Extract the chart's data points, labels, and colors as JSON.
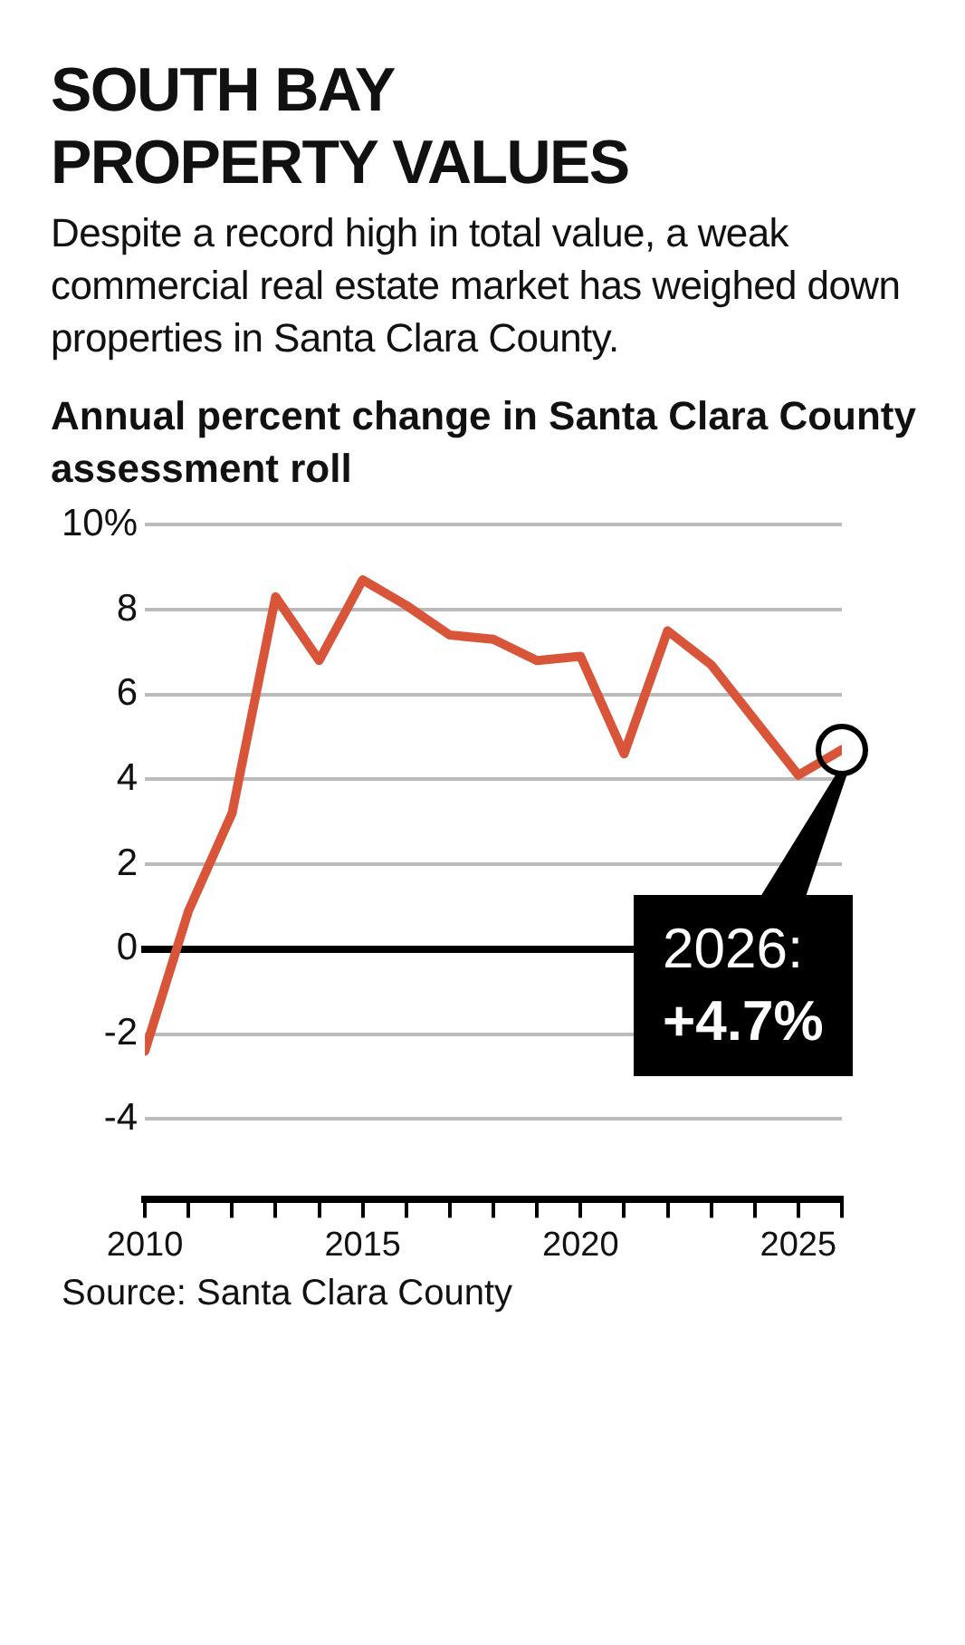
{
  "chart_data": {
    "type": "line",
    "title": "SOUTH BAY PROPERTY VALUES",
    "subtitle": "Despite a record high in total value, a weak commercial real estate market has weighed down properties in Santa Clara County.",
    "ylabel": "Annual percent change in Santa Clara County assessment roll",
    "x": [
      2010,
      2011,
      2012,
      2013,
      2014,
      2015,
      2016,
      2017,
      2018,
      2019,
      2020,
      2021,
      2022,
      2023,
      2024,
      2025,
      2026
    ],
    "series": [
      {
        "color": "#d9553a",
        "values": [
          -2.4,
          0.9,
          3.2,
          8.3,
          6.8,
          8.7,
          8.1,
          7.4,
          7.3,
          6.8,
          6.9,
          4.6,
          7.5,
          6.7,
          5.4,
          4.1,
          4.7
        ]
      }
    ],
    "xlim": [
      2010,
      2026
    ],
    "xticks": [
      {
        "value": 2010,
        "label": "2010"
      },
      {
        "value": 2011,
        "label": null
      },
      {
        "value": 2012,
        "label": null
      },
      {
        "value": 2013,
        "label": null
      },
      {
        "value": 2014,
        "label": null
      },
      {
        "value": 2015,
        "label": "2015"
      },
      {
        "value": 2016,
        "label": null
      },
      {
        "value": 2017,
        "label": null
      },
      {
        "value": 2018,
        "label": null
      },
      {
        "value": 2019,
        "label": null
      },
      {
        "value": 2020,
        "label": "2020"
      },
      {
        "value": 2021,
        "label": null
      },
      {
        "value": 2022,
        "label": null
      },
      {
        "value": 2023,
        "label": null
      },
      {
        "value": 2024,
        "label": null
      },
      {
        "value": 2025,
        "label": "2025"
      },
      {
        "value": 2026,
        "label": null
      }
    ],
    "ylim": [
      -5.9,
      10
    ],
    "yticks": [
      -4,
      -2,
      0,
      2,
      4,
      6,
      8,
      {
        "value": 10,
        "label": "10%"
      }
    ],
    "grid": "y",
    "marker": "none",
    "line_style": "solid",
    "legend": false,
    "ref_lines": [
      {
        "axis": "y",
        "value": 0,
        "color": "#000000"
      }
    ],
    "annotations": [
      {
        "text": "2026: +4.7%",
        "x": 2026,
        "y": 4.7
      },
      "Source: Santa Clara County"
    ]
  }
}
